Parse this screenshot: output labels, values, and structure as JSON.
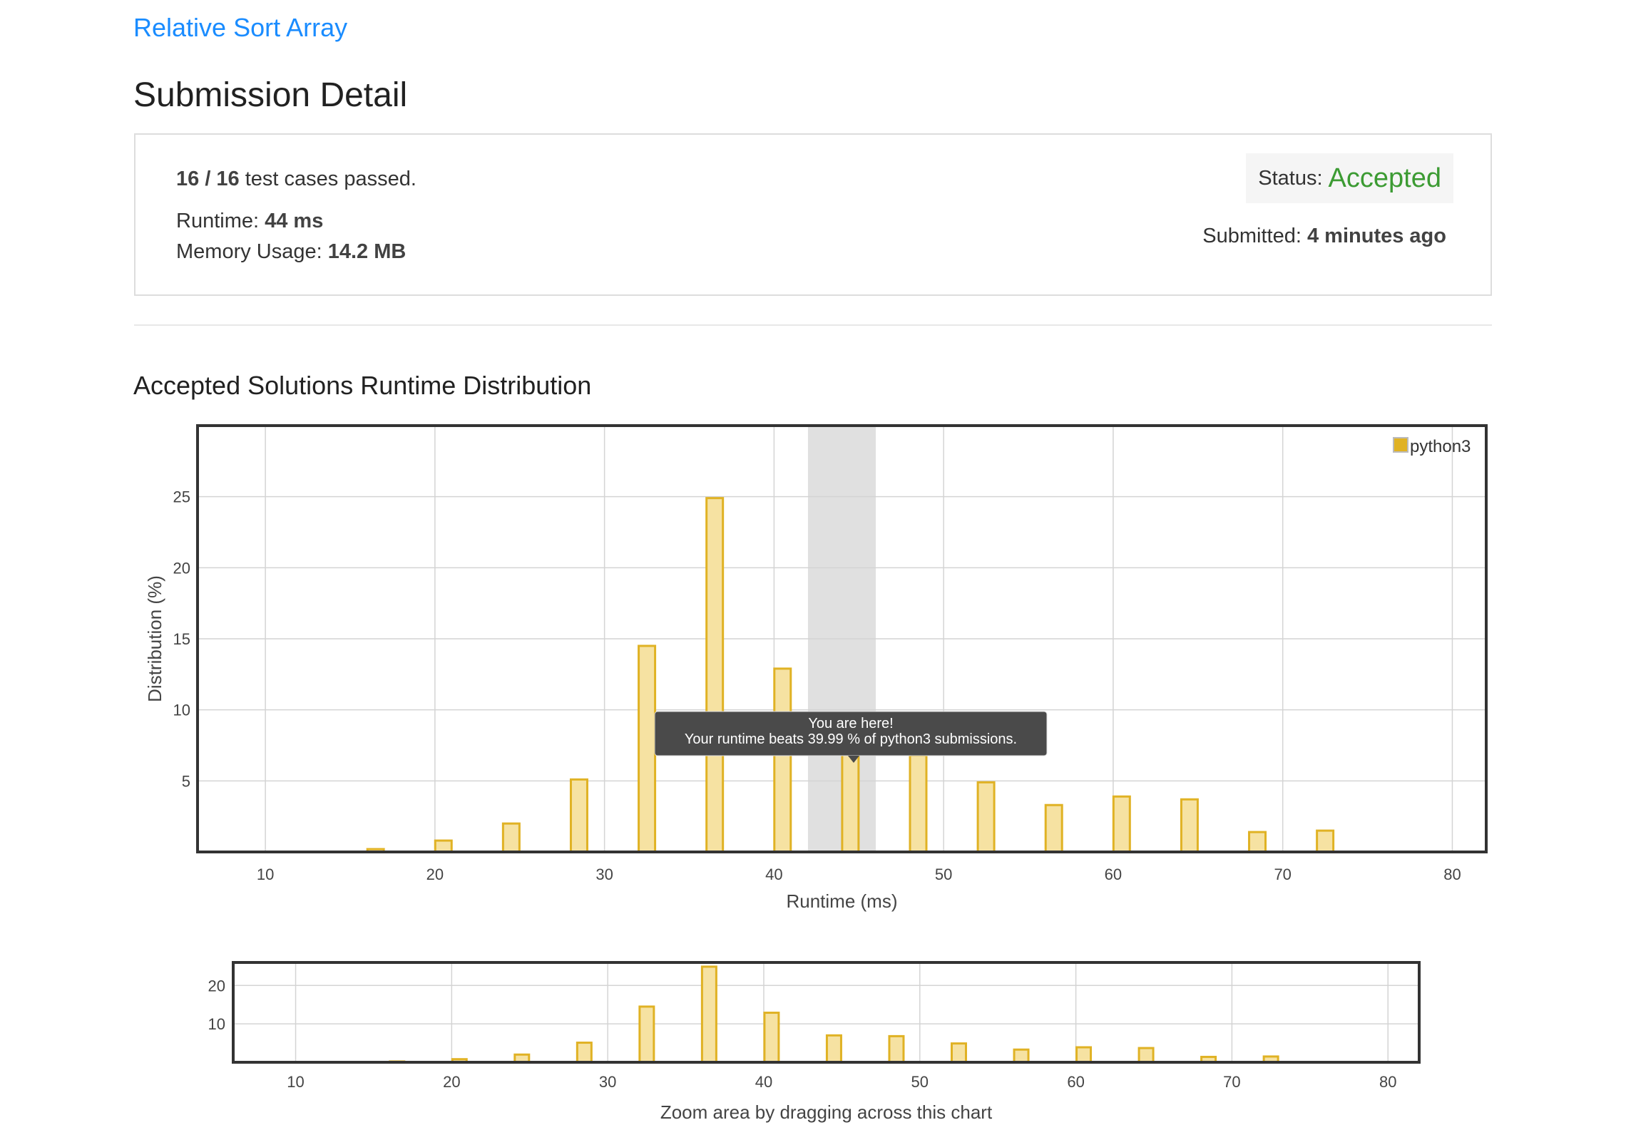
{
  "problem": {
    "title": "Relative Sort Array"
  },
  "page": {
    "title": "Submission Detail"
  },
  "result": {
    "tests_fraction": "16 / 16",
    "tests_suffix": "test cases passed.",
    "runtime_label": "Runtime:",
    "runtime_value": "44 ms",
    "memory_label": "Memory Usage:",
    "memory_value": "14.2 MB",
    "status_label": "Status:",
    "status_value": "Accepted",
    "submitted_label": "Submitted:",
    "submitted_value": "4 minutes ago"
  },
  "colors": {
    "link": "#1a8cff",
    "accepted": "#3c9b33",
    "bar_fill": "#f6e2a2",
    "bar_stroke": "#e0b224",
    "highlight_band": "#e0e0e0",
    "tooltip_bg": "#4a4a4a"
  },
  "section": {
    "title": "Accepted Solutions Runtime Distribution"
  },
  "chart_data": [
    {
      "type": "bar",
      "role": "main",
      "xlabel": "Runtime (ms)",
      "ylabel": "Distribution (%)",
      "xlim": [
        6,
        82
      ],
      "ylim": [
        0,
        30
      ],
      "xticks": [
        10,
        20,
        30,
        40,
        50,
        60,
        70,
        80
      ],
      "yticks": [
        5,
        10,
        15,
        20,
        25
      ],
      "legend": {
        "position": "top-right",
        "entries": [
          "python3"
        ]
      },
      "grid": true,
      "highlight_range": [
        42,
        46
      ],
      "series": [
        {
          "name": "python3",
          "x": [
            16.5,
            20.5,
            24.5,
            28.5,
            32.5,
            36.5,
            40.5,
            44.5,
            48.5,
            52.5,
            56.5,
            60.5,
            64.5,
            68.5,
            72.5
          ],
          "values": [
            0.2,
            0.8,
            2.0,
            5.1,
            14.5,
            24.9,
            12.9,
            7.0,
            6.8,
            4.9,
            3.3,
            3.9,
            3.7,
            1.4,
            1.5
          ]
        }
      ],
      "tooltip": {
        "title": "You are here!",
        "text": "Your runtime beats 39.99 % of python3 submissions."
      }
    },
    {
      "type": "bar",
      "role": "navigator",
      "xlim": [
        6,
        82
      ],
      "ylim": [
        0,
        26
      ],
      "xticks": [
        10,
        20,
        30,
        40,
        50,
        60,
        70,
        80
      ],
      "yticks": [
        10,
        20
      ],
      "grid": true,
      "caption": "Zoom area by dragging across this chart"
    }
  ]
}
